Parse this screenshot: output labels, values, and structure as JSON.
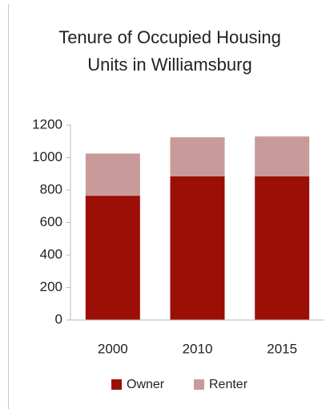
{
  "chart_data": {
    "type": "stacked_bar",
    "title": [
      "Tenure of Occupied Housing",
      "Units in Williamsburg"
    ],
    "categories": [
      "2000",
      "2010",
      "2015"
    ],
    "series": [
      {
        "name": "Owner",
        "color": "#9b0f06",
        "values": [
          765,
          885,
          885
        ]
      },
      {
        "name": "Renter",
        "color": "#c99a9a",
        "values": [
          260,
          240,
          245
        ]
      }
    ],
    "ylim": [
      0,
      1200
    ],
    "yticks": [
      0,
      200,
      400,
      600,
      800,
      1000,
      1200
    ],
    "grid": false,
    "legend": "bottom"
  }
}
